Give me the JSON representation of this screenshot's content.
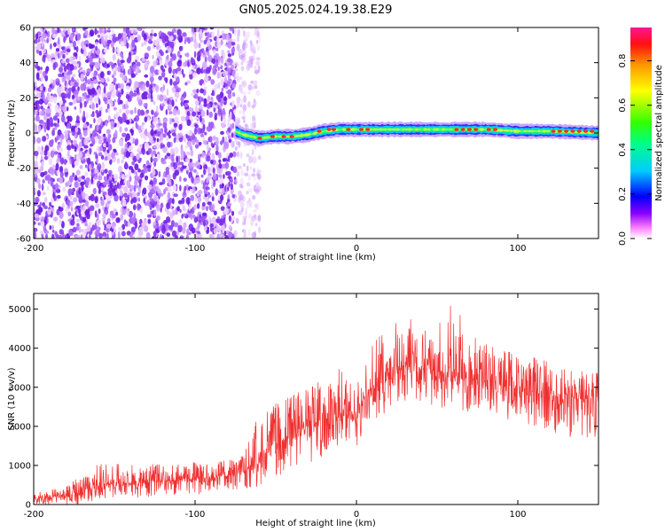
{
  "chart_data": [
    {
      "type": "heatmap",
      "title": "GN05.2025.024.19.38.E29",
      "xlabel": "Height of straight line (km)",
      "ylabel": "Frequency (Hz)",
      "xlim": [
        -200,
        150
      ],
      "ylim": [
        -60,
        60
      ],
      "xticks": [
        -200,
        -100,
        0,
        100
      ],
      "yticks": [
        -60,
        -40,
        -20,
        0,
        20,
        40,
        60
      ],
      "grid": false,
      "colorbar": {
        "label": "Normalized spectral amplitude",
        "range": [
          0.0,
          0.95
        ],
        "ticks": [
          "0.0",
          "0.2",
          "0.4",
          "0.6",
          "0.8"
        ],
        "colors": [
          "#ffffff",
          "#ff66ff",
          "#7700ff",
          "#0000ff",
          "#00ffff",
          "#00ff00",
          "#ffff00",
          "#ff8800",
          "#ff0000",
          "#ff1493"
        ]
      },
      "regions": [
        {
          "x_range": [
            -200,
            -75
          ],
          "description": "broadband noise",
          "amplitude": [
            0.0,
            0.15
          ]
        },
        {
          "x_range": [
            -75,
            -60
          ],
          "description": "transition",
          "amplitude": [
            0.0,
            0.1
          ]
        },
        {
          "x_range": [
            -75,
            150
          ],
          "description": "narrow signal trace",
          "amplitude": [
            0.3,
            0.95
          ]
        }
      ],
      "trace": {
        "x": [
          -75,
          -70,
          -60,
          -50,
          -40,
          -30,
          -20,
          -10,
          0,
          10,
          20,
          40,
          60,
          80,
          100,
          120,
          150
        ],
        "y": [
          1,
          -1,
          -3,
          -2,
          -2,
          -1,
          1,
          2,
          2,
          2,
          2,
          2,
          2,
          2,
          1,
          1,
          0
        ]
      }
    },
    {
      "type": "line",
      "xlabel": "Height of straight line (km)",
      "ylabel": "SNR (10 * v/v)",
      "xlim": [
        -200,
        150
      ],
      "ylim": [
        0,
        5400
      ],
      "xticks": [
        -200,
        -100,
        0,
        100
      ],
      "yticks": [
        0,
        1000,
        2000,
        3000,
        4000,
        5000
      ],
      "color": "#f03030",
      "grid": false,
      "envelope": {
        "x": [
          -200,
          -180,
          -170,
          -160,
          -140,
          -120,
          -100,
          -80,
          -70,
          -62,
          -55,
          -40,
          -20,
          -10,
          0,
          5,
          10,
          20,
          30,
          35,
          40,
          50,
          60,
          70,
          80,
          90,
          100,
          110,
          120,
          130,
          140,
          150
        ],
        "mean": [
          150,
          200,
          350,
          500,
          550,
          600,
          650,
          750,
          850,
          1000,
          1400,
          1800,
          2200,
          2300,
          2100,
          2700,
          3000,
          3200,
          3500,
          3600,
          3500,
          3400,
          3300,
          3200,
          3200,
          3100,
          3000,
          2900,
          2800,
          2750,
          2700,
          2700
        ],
        "upper": [
          350,
          450,
          850,
          1050,
          1050,
          1050,
          1100,
          1150,
          1300,
          2200,
          2500,
          2800,
          3300,
          3500,
          3000,
          3700,
          4300,
          4600,
          4800,
          5250,
          4500,
          4600,
          5350,
          4300,
          4200,
          4000,
          3900,
          3800,
          3700,
          3600,
          3500,
          3500
        ],
        "lower": [
          0,
          0,
          0,
          100,
          150,
          200,
          250,
          300,
          400,
          400,
          600,
          900,
          1200,
          1300,
          1300,
          1700,
          2100,
          2400,
          2600,
          2700,
          2600,
          2500,
          2400,
          2300,
          2200,
          2200,
          2100,
          2000,
          1900,
          1700,
          1700,
          1600
        ]
      }
    }
  ]
}
